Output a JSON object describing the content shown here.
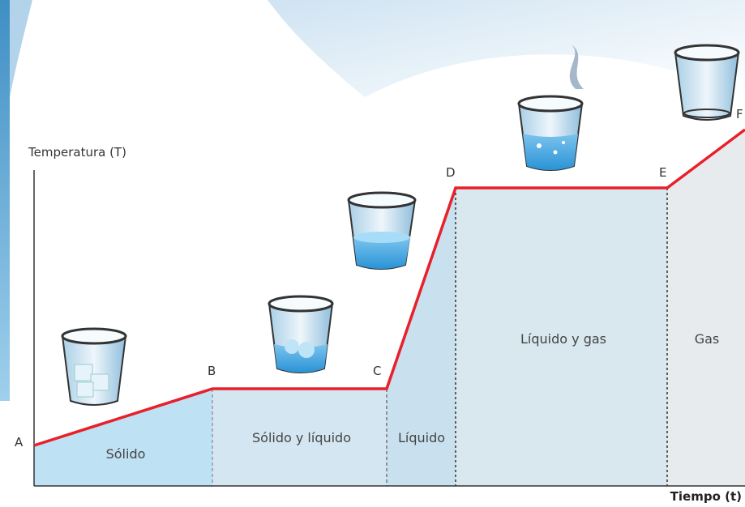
{
  "y_axis_label": "Temperatura (T)",
  "x_axis_label": "Tiempo (t)",
  "points": [
    "A",
    "B",
    "C",
    "D",
    "E",
    "F"
  ],
  "regions": [
    "Sólido",
    "Sólido y líquido",
    "Líquido",
    "Líquido y gas",
    "Gas"
  ]
}
